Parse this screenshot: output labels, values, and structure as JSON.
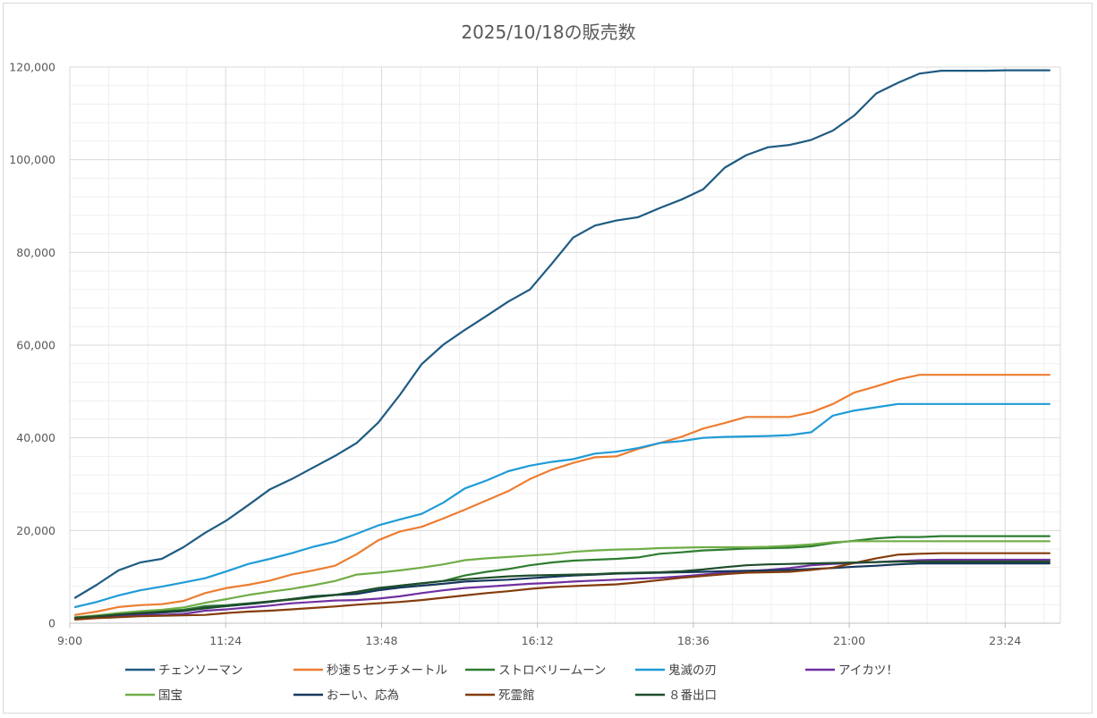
{
  "chart_data": {
    "type": "line",
    "title": "2025/10/18の販売数",
    "xlabel": "",
    "ylabel": "",
    "x_start_minutes": 540,
    "x_end_minutes": 1455,
    "xlim": [
      "9:00",
      "24:15"
    ],
    "x_tick_labels": [
      "9:00",
      "11:24",
      "13:48",
      "16:12",
      "18:36",
      "21:00",
      "23:24"
    ],
    "ylim": [
      0,
      120000
    ],
    "y_tick_labels": [
      "0",
      "20,000",
      "40,000",
      "60,000",
      "80,000",
      "100,000",
      "120,000"
    ],
    "grid": true,
    "legend_position": "bottom",
    "x": [
      "9:05",
      "9:25",
      "9:45",
      "10:05",
      "10:25",
      "10:45",
      "11:05",
      "11:25",
      "11:45",
      "12:05",
      "12:25",
      "12:45",
      "13:05",
      "13:25",
      "13:45",
      "14:05",
      "14:25",
      "14:45",
      "15:05",
      "15:25",
      "15:45",
      "16:05",
      "16:25",
      "16:45",
      "17:05",
      "17:25",
      "17:45",
      "18:05",
      "18:25",
      "18:45",
      "19:05",
      "19:25",
      "19:45",
      "20:05",
      "20:25",
      "20:45",
      "21:05",
      "21:25",
      "21:45",
      "22:05",
      "22:25",
      "22:45",
      "23:05",
      "23:25",
      "23:45",
      "24:05"
    ],
    "series": [
      {
        "name": "チェンソーマン",
        "color": "#1f5b82",
        "values": [
          5500,
          8300,
          11400,
          13100,
          13900,
          16400,
          19500,
          22200,
          25500,
          28900,
          31100,
          33600,
          36100,
          38900,
          43300,
          49300,
          55900,
          60100,
          63300,
          66300,
          69400,
          72000,
          77500,
          83200,
          85800,
          86900,
          87600,
          89600,
          91400,
          93600,
          98300,
          101000,
          102700,
          103200,
          104300,
          106300,
          109600,
          114300,
          116600,
          118600,
          119200,
          119200,
          119200,
          119300,
          119300,
          119300
        ]
      },
      {
        "name": "秒速５センチメートル",
        "color": "#ed7d31",
        "values": [
          1800,
          2500,
          3500,
          3900,
          4100,
          4800,
          6500,
          7600,
          8300,
          9200,
          10500,
          11400,
          12400,
          14900,
          17900,
          19800,
          20800,
          22600,
          24500,
          26500,
          28500,
          31100,
          33100,
          34600,
          35800,
          36000,
          37600,
          38900,
          40200,
          42000,
          43200,
          44500,
          44500,
          44500,
          45500,
          47300,
          49800,
          51100,
          52600,
          53600,
          53600,
          53600,
          53600,
          53600,
          53600,
          53600
        ]
      },
      {
        "name": "ストロベリームーン",
        "color": "#2e7d32",
        "values": [
          1200,
          1600,
          2100,
          2400,
          2600,
          2900,
          3700,
          3900,
          4300,
          4700,
          5100,
          5600,
          6100,
          6600,
          7400,
          8100,
          8600,
          9100,
          10300,
          11100,
          11700,
          12500,
          13100,
          13500,
          13700,
          13900,
          14200,
          15000,
          15300,
          15700,
          15900,
          16100,
          16200,
          16300,
          16600,
          17300,
          17800,
          18300,
          18600,
          18600,
          18800,
          18800,
          18800,
          18800,
          18800,
          18800
        ]
      },
      {
        "name": "鬼滅の刃",
        "color": "#1f9bd7",
        "values": [
          3500,
          4600,
          6000,
          7100,
          7900,
          8800,
          9700,
          11200,
          12800,
          13900,
          15100,
          16500,
          17600,
          19300,
          21100,
          22400,
          23600,
          26000,
          29100,
          30800,
          32800,
          34000,
          34800,
          35400,
          36600,
          37000,
          37800,
          38900,
          39300,
          40000,
          40200,
          40300,
          40400,
          40600,
          41200,
          44800,
          45900,
          46600,
          47300,
          47300,
          47300,
          47300,
          47300,
          47300,
          47300,
          47300
        ]
      },
      {
        "name": "アイカツ！",
        "color": "#7030a0",
        "values": [
          1000,
          1300,
          1600,
          1800,
          1800,
          2000,
          2700,
          3000,
          3400,
          3800,
          4300,
          4600,
          4900,
          5000,
          5300,
          5800,
          6500,
          7100,
          7600,
          7900,
          8200,
          8500,
          8700,
          9000,
          9200,
          9400,
          9600,
          9800,
          10100,
          10500,
          10900,
          11200,
          11500,
          11900,
          12500,
          12800,
          13000,
          13200,
          13400,
          13600,
          13700,
          13700,
          13700,
          13700,
          13700,
          13700
        ]
      },
      {
        "name": "国宝",
        "color": "#70ad47",
        "values": [
          1300,
          1700,
          2200,
          2600,
          2900,
          3400,
          4400,
          5200,
          6100,
          6800,
          7400,
          8200,
          9100,
          10500,
          10900,
          11400,
          12000,
          12700,
          13600,
          14000,
          14300,
          14600,
          14900,
          15400,
          15700,
          15900,
          16000,
          16200,
          16300,
          16400,
          16400,
          16400,
          16500,
          16700,
          17000,
          17500,
          17700,
          17700,
          17700,
          17700,
          17700,
          17700,
          17700,
          17700,
          17700,
          17700
        ]
      },
      {
        "name": "おーい、応為",
        "color": "#17375e",
        "values": [
          1000,
          1400,
          1800,
          2100,
          2300,
          2600,
          3300,
          3700,
          4100,
          4600,
          5200,
          5800,
          6100,
          6300,
          7100,
          7700,
          8100,
          8500,
          9000,
          9200,
          9400,
          9700,
          10000,
          10300,
          10500,
          10700,
          10800,
          10900,
          11000,
          11100,
          11200,
          11300,
          11400,
          11500,
          11700,
          11900,
          12200,
          12400,
          12700,
          12900,
          12900,
          12900,
          12900,
          12900,
          12900,
          12900
        ]
      },
      {
        "name": "死霊館",
        "color": "#843c0c",
        "values": [
          800,
          1100,
          1300,
          1500,
          1600,
          1700,
          1800,
          2200,
          2500,
          2700,
          3000,
          3300,
          3600,
          4000,
          4300,
          4600,
          5000,
          5500,
          6000,
          6500,
          6900,
          7400,
          7800,
          8000,
          8200,
          8400,
          8800,
          9300,
          9800,
          10200,
          10600,
          10900,
          11000,
          11100,
          11500,
          12000,
          13000,
          14000,
          14800,
          15000,
          15100,
          15100,
          15100,
          15100,
          15100,
          15100
        ]
      },
      {
        "name": "８番出口",
        "color": "#1e4d2b",
        "values": [
          1200,
          1500,
          1900,
          2200,
          2500,
          2700,
          3200,
          3700,
          4200,
          4700,
          5200,
          5700,
          6100,
          6800,
          7600,
          8100,
          8600,
          9100,
          9500,
          9800,
          10100,
          10300,
          10400,
          10500,
          10600,
          10800,
          10900,
          11000,
          11200,
          11600,
          12100,
          12500,
          12700,
          12800,
          12900,
          13000,
          13100,
          13200,
          13300,
          13300,
          13300,
          13300,
          13300,
          13300,
          13300,
          13300
        ]
      }
    ]
  }
}
